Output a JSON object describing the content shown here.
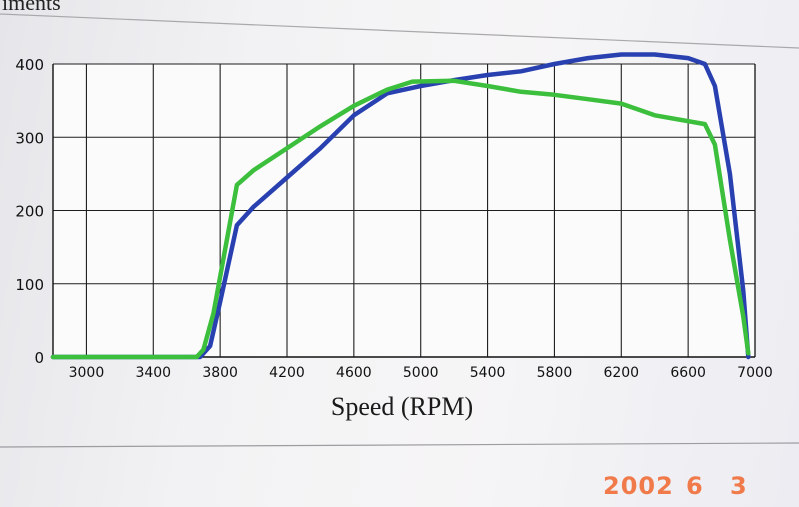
{
  "page": {
    "top_text": "iments",
    "date_stamp": {
      "year": "2002",
      "month": "6",
      "day": "3"
    },
    "colors": {
      "background": "#f2f2f4",
      "stamp": "#f07a4a"
    }
  },
  "chart_data": {
    "type": "line",
    "title": "",
    "xlabel": "Speed (RPM)",
    "ylabel": "",
    "xlim": [
      2800,
      7000
    ],
    "ylim": [
      0,
      400
    ],
    "xticks": [
      3000,
      3400,
      3800,
      4200,
      4600,
      5000,
      5400,
      5800,
      6200,
      6600,
      7000
    ],
    "yticks": [
      0,
      100,
      200,
      300,
      400
    ],
    "grid": true,
    "series": [
      {
        "color": "#2840b0",
        "points": [
          [
            2800,
            0
          ],
          [
            3680,
            0
          ],
          [
            3740,
            15
          ],
          [
            3800,
            75
          ],
          [
            3900,
            180
          ],
          [
            4000,
            205
          ],
          [
            4200,
            245
          ],
          [
            4400,
            285
          ],
          [
            4600,
            330
          ],
          [
            4800,
            360
          ],
          [
            5000,
            370
          ],
          [
            5200,
            378
          ],
          [
            5400,
            385
          ],
          [
            5600,
            390
          ],
          [
            5800,
            400
          ],
          [
            6000,
            408
          ],
          [
            6200,
            413
          ],
          [
            6400,
            413
          ],
          [
            6600,
            408
          ],
          [
            6700,
            400
          ],
          [
            6760,
            370
          ],
          [
            6850,
            250
          ],
          [
            6930,
            90
          ],
          [
            6960,
            0
          ]
        ]
      },
      {
        "color": "#3cbf3c",
        "points": [
          [
            2800,
            0
          ],
          [
            3660,
            0
          ],
          [
            3700,
            10
          ],
          [
            3760,
            60
          ],
          [
            3900,
            235
          ],
          [
            4000,
            255
          ],
          [
            4200,
            285
          ],
          [
            4400,
            315
          ],
          [
            4600,
            343
          ],
          [
            4800,
            365
          ],
          [
            4950,
            376
          ],
          [
            5200,
            377
          ],
          [
            5400,
            370
          ],
          [
            5600,
            362
          ],
          [
            5800,
            358
          ],
          [
            6000,
            352
          ],
          [
            6200,
            346
          ],
          [
            6400,
            330
          ],
          [
            6700,
            318
          ],
          [
            6760,
            290
          ],
          [
            6850,
            160
          ],
          [
            6930,
            55
          ],
          [
            6960,
            5
          ]
        ]
      }
    ]
  }
}
